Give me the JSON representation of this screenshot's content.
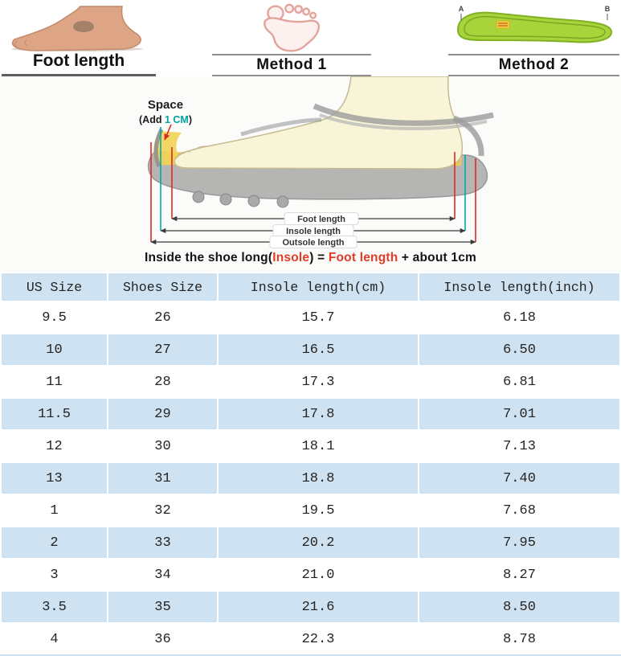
{
  "header": {
    "foot_photo_caption": "Foot length",
    "method1_caption": "Method 1",
    "method2_caption": "Method 2",
    "insole_label_a": "A",
    "insole_label_b": "B"
  },
  "diagram": {
    "space_label": "Space",
    "add_prefix": "(Add ",
    "add_highlight": "1 CM",
    "add_suffix": ")",
    "measure_labels": {
      "foot": "Foot length",
      "insole": "Insole length",
      "outsole": "Outsole length"
    },
    "formula": {
      "part1": "Inside the shoe long(",
      "insole_word": "Insole",
      "part2": ") = ",
      "foot_word": "Foot length",
      "part3": " + about 1cm"
    }
  },
  "colors": {
    "accent_red": "#dd2a22",
    "accent_teal": "#00a2a4",
    "row_blue": "#cfe2f1",
    "insole_green": "#a8d33a",
    "insole_yellow": "#edc94f"
  },
  "size_table": {
    "headers": [
      "US Size",
      "Shoes Size",
      "Insole length(cm)",
      "Insole length(inch)"
    ],
    "rows": [
      [
        "9.5",
        "26",
        "15.7",
        "6.18"
      ],
      [
        "10",
        "27",
        "16.5",
        "6.50"
      ],
      [
        "11",
        "28",
        "17.3",
        "6.81"
      ],
      [
        "11.5",
        "29",
        "17.8",
        "7.01"
      ],
      [
        "12",
        "30",
        "18.1",
        "7.13"
      ],
      [
        "13",
        "31",
        "18.8",
        "7.40"
      ],
      [
        "1",
        "32",
        "19.5",
        "7.68"
      ],
      [
        "2",
        "33",
        "20.2",
        "7.95"
      ],
      [
        "3",
        "34",
        "21.0",
        "8.27"
      ],
      [
        "3.5",
        "35",
        "21.6",
        "8.50"
      ],
      [
        "4",
        "36",
        "22.3",
        "8.78"
      ]
    ]
  }
}
